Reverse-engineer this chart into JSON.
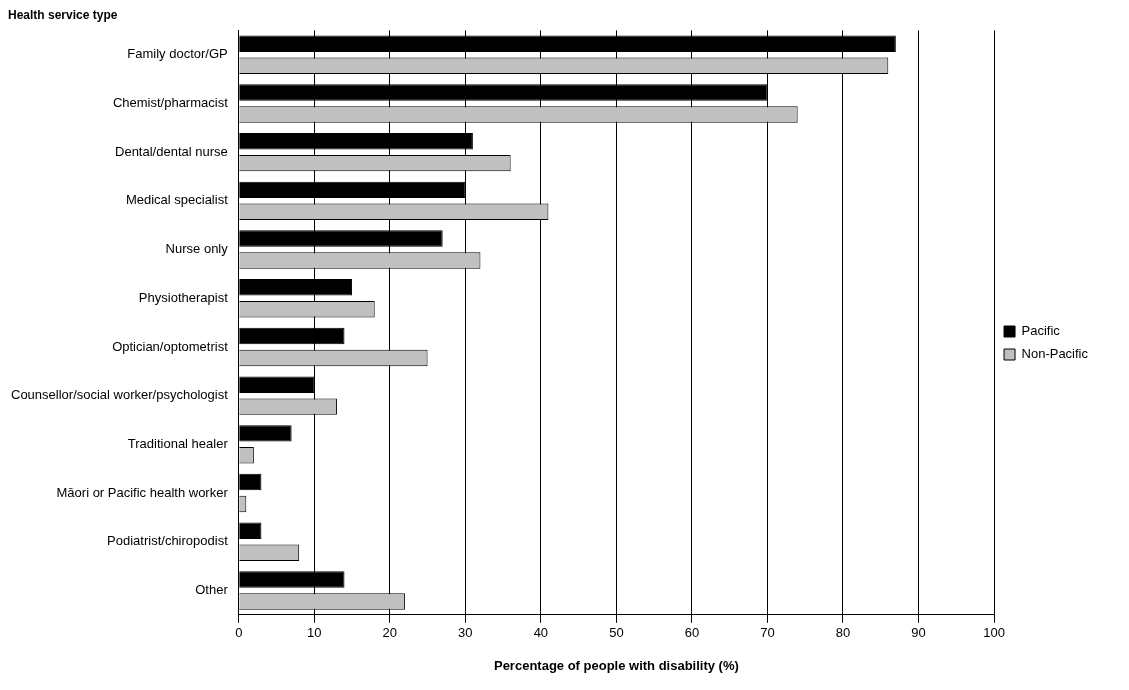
{
  "chart_data": {
    "type": "bar",
    "orientation": "horizontal",
    "title": "Health service type",
    "xlabel": "Percentage of people with disability (%)",
    "categories": [
      "Family doctor/GP",
      "Chemist/pharmacist",
      "Dental/dental nurse",
      "Medical specialist",
      "Nurse only",
      "Physiotherapist",
      "Optician/optometrist",
      "Counsellor/social worker/psychologist",
      "Traditional healer",
      "Māori or Pacific health worker",
      "Podiatrist/chiropodist",
      "Other"
    ],
    "series": [
      {
        "name": "Pacific",
        "color": "#000000",
        "values": [
          87,
          70,
          31,
          30,
          27,
          15,
          14,
          10,
          7,
          3,
          3,
          14
        ]
      },
      {
        "name": "Non-Pacific",
        "color": "#c0c0c0",
        "values": [
          86,
          74,
          36,
          41,
          32,
          18,
          25,
          13,
          2,
          1,
          8,
          22
        ]
      }
    ],
    "xlim": [
      0,
      100
    ],
    "xticks": [
      0,
      10,
      20,
      30,
      40,
      50,
      60,
      70,
      80,
      90,
      100
    ],
    "grid": "x",
    "legend": "right"
  }
}
